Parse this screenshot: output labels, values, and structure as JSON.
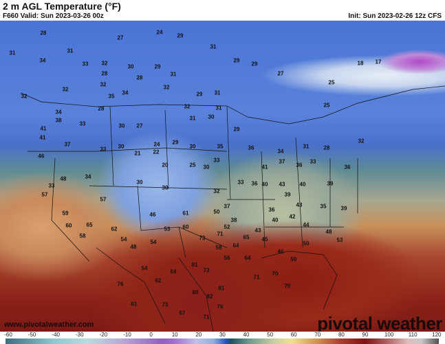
{
  "header": {
    "title": "2 m AGL Temperature (°F)",
    "valid": "F660 Valid: Sun 2023-03-26 00z",
    "init": "Init: Sun 2023-02-26 12z CFS"
  },
  "map": {
    "site": "www.pivotalweather.com",
    "brand": "pivotal weather",
    "values": [
      "28",
      "27",
      "24",
      "31",
      "31",
      "30",
      "29",
      "31",
      "34",
      "33",
      "32",
      "28",
      "28",
      "29",
      "31",
      "29",
      "18",
      "17",
      "32",
      "32",
      "35",
      "34",
      "32",
      "29",
      "31",
      "29",
      "27",
      "25",
      "25",
      "32",
      "34",
      "28",
      "30",
      "27",
      "32",
      "31",
      "31",
      "30",
      "29",
      "41",
      "38",
      "33",
      "30",
      "24",
      "29",
      "30",
      "35",
      "36",
      "34",
      "31",
      "28",
      "32",
      "41",
      "37",
      "33",
      "21",
      "22",
      "20",
      "30",
      "33",
      "41",
      "37",
      "36",
      "33",
      "46",
      "48",
      "34",
      "30",
      "25",
      "30",
      "32",
      "37",
      "33",
      "36",
      "40",
      "43",
      "40",
      "39",
      "36",
      "33",
      "57",
      "57",
      "46",
      "38",
      "36",
      "39",
      "43",
      "35",
      "39",
      "59",
      "60",
      "65",
      "62",
      "53",
      "61",
      "60",
      "50",
      "52",
      "43",
      "40",
      "42",
      "44",
      "48",
      "53",
      "58",
      "54",
      "48",
      "54",
      "73",
      "71",
      "59",
      "64",
      "65",
      "45",
      "46",
      "50",
      "56",
      "64",
      "70",
      "50",
      "81",
      "73",
      "71",
      "70",
      "64",
      "54",
      "62",
      "80",
      "82",
      "76",
      "61",
      "73",
      "67",
      "71",
      "81",
      "76"
    ]
  },
  "colorbar": {
    "ticks": [
      "-60",
      "-50",
      "-40",
      "-30",
      "-20",
      "-10",
      "0",
      "10",
      "20",
      "30",
      "40",
      "50",
      "60",
      "70",
      "80",
      "90",
      "100",
      "110",
      "120"
    ],
    "colors": {
      "cold": "#3c6e80",
      "freezing": "#2050c0",
      "mild": "#f0e090",
      "hot": "#801010"
    }
  }
}
